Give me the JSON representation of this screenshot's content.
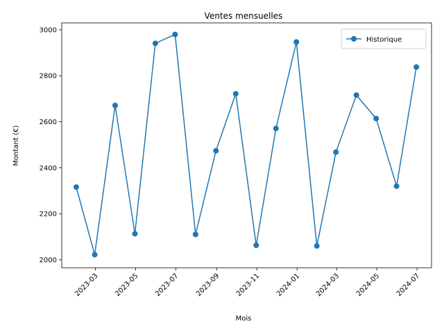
{
  "chart_data": {
    "type": "line",
    "title": "Ventes mensuelles",
    "xlabel": "Mois",
    "ylabel": "Montant (€)",
    "xlim": [
      "2023-01-09",
      "2024-07-23"
    ],
    "ylim": [
      1965,
      3030
    ],
    "x_ticks": [
      "2023-03",
      "2023-05",
      "2023-07",
      "2023-09",
      "2023-11",
      "2024-01",
      "2024-03",
      "2024-05",
      "2024-07"
    ],
    "y_ticks": [
      2000,
      2200,
      2400,
      2600,
      2800,
      3000
    ],
    "grid": false,
    "legend_position": "top-right",
    "series": [
      {
        "name": "Historique",
        "color": "#1f77b4",
        "marker": "circle",
        "x": [
          "2023-01-31",
          "2023-02-28",
          "2023-03-31",
          "2023-04-30",
          "2023-05-31",
          "2023-06-30",
          "2023-07-31",
          "2023-08-31",
          "2023-09-30",
          "2023-10-31",
          "2023-11-30",
          "2023-12-31",
          "2024-01-31",
          "2024-02-29",
          "2024-03-31",
          "2024-04-30",
          "2024-05-31",
          "2024-06-30"
        ],
        "values": [
          2316,
          2022,
          2671,
          2113,
          2941,
          2980,
          2110,
          2474,
          2722,
          2063,
          2571,
          2947,
          2060,
          2468,
          2716,
          2614,
          2320,
          2838
        ]
      }
    ]
  }
}
